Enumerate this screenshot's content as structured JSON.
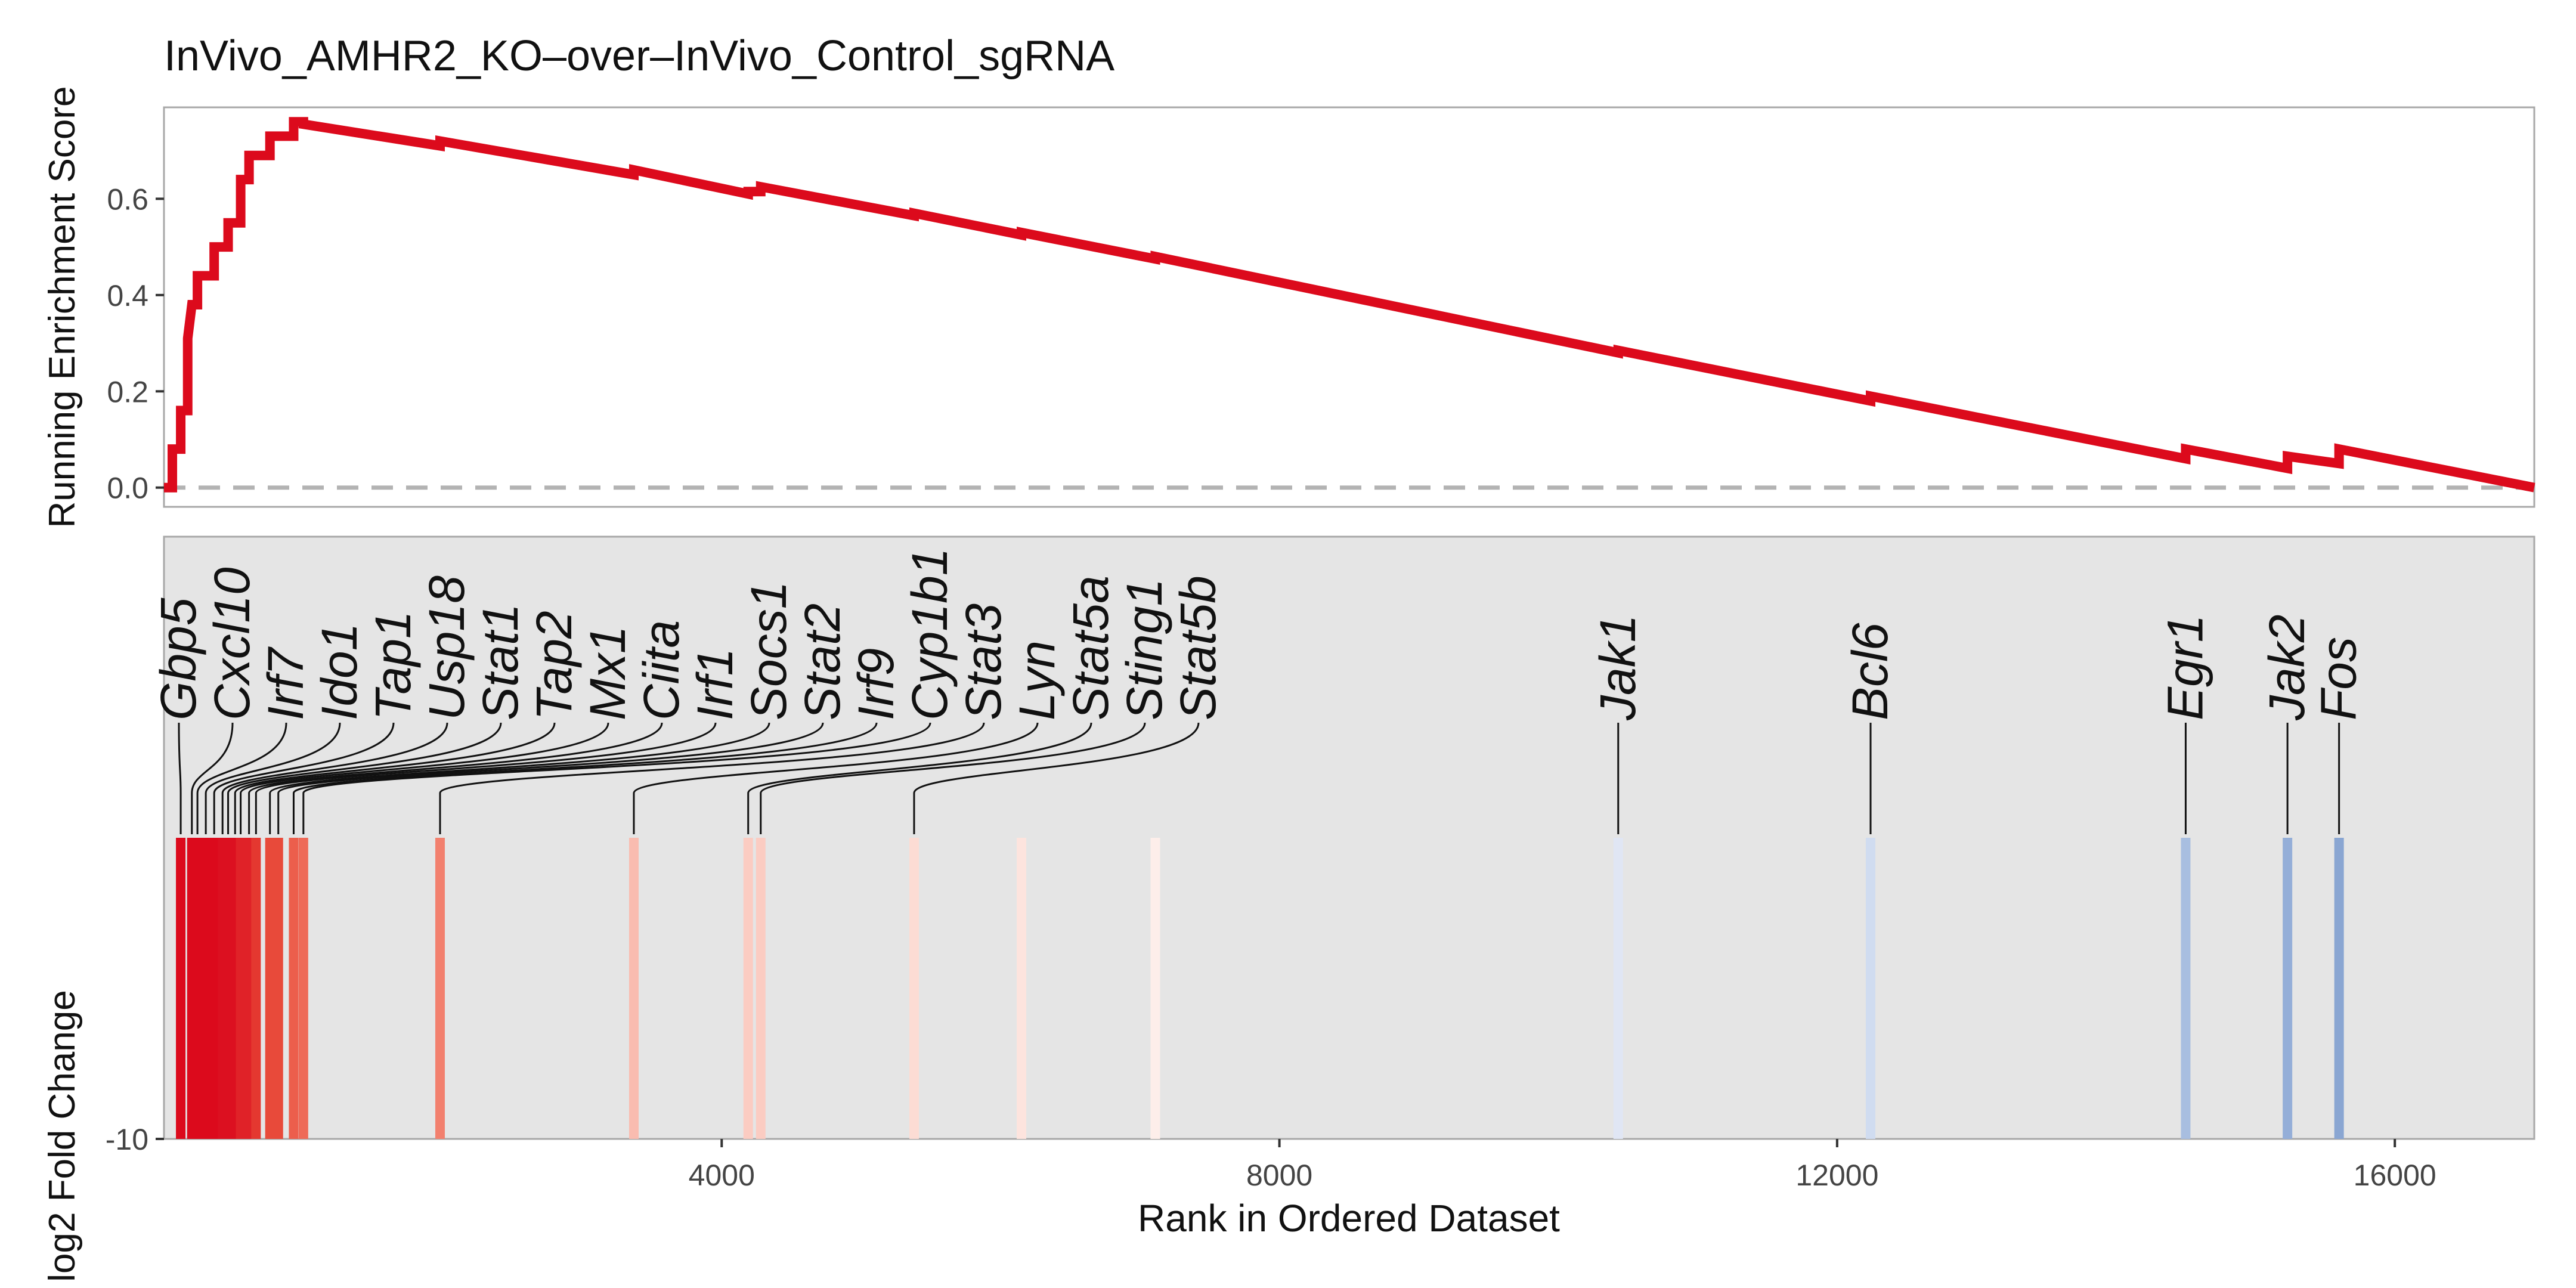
{
  "chart_data": [
    {
      "type": "line",
      "title": "InVivo_AMHR2_KO–over–InVivo_Control_sgRNA",
      "ylabel": "Running Enrichment Score",
      "xlim": [
        0,
        17000
      ],
      "ylim": [
        -0.04,
        0.79
      ],
      "yticks": [
        0.0,
        0.2,
        0.4,
        0.6
      ],
      "ytick_labels": [
        "0.0",
        "0.2",
        "0.4",
        "0.6"
      ],
      "grid": false,
      "reference_line": {
        "y": 0.0,
        "style": "dashed",
        "color": "#b0b0b0"
      },
      "series": [
        {
          "color": "#dc0a1c",
          "points": [
            [
              0,
              0
            ],
            [
              60,
              0
            ],
            [
              60,
              0.08
            ],
            [
              120,
              0.08
            ],
            [
              120,
              0.16
            ],
            [
              170,
              0.16
            ],
            [
              170,
              0.31
            ],
            [
              200,
              0.38
            ],
            [
              240,
              0.38
            ],
            [
              240,
              0.44
            ],
            [
              360,
              0.44
            ],
            [
              360,
              0.5
            ],
            [
              460,
              0.5
            ],
            [
              460,
              0.55
            ],
            [
              550,
              0.55
            ],
            [
              550,
              0.64
            ],
            [
              610,
              0.64
            ],
            [
              610,
              0.69
            ],
            [
              760,
              0.69
            ],
            [
              760,
              0.73
            ],
            [
              930,
              0.73
            ],
            [
              930,
              0.76
            ],
            [
              1000,
              0.76
            ],
            [
              1000,
              0.755
            ],
            [
              1980,
              0.71
            ],
            [
              1980,
              0.72
            ],
            [
              3370,
              0.65
            ],
            [
              3370,
              0.66
            ],
            [
              4190,
              0.61
            ],
            [
              4190,
              0.615
            ],
            [
              4280,
              0.615
            ],
            [
              4280,
              0.625
            ],
            [
              5380,
              0.565
            ],
            [
              5380,
              0.57
            ],
            [
              6150,
              0.525
            ],
            [
              6150,
              0.53
            ],
            [
              7110,
              0.475
            ],
            [
              7110,
              0.48
            ],
            [
              10430,
              0.28
            ],
            [
              10430,
              0.285
            ],
            [
              12240,
              0.18
            ],
            [
              12240,
              0.19
            ],
            [
              14500,
              0.06
            ],
            [
              14500,
              0.08
            ],
            [
              15230,
              0.04
            ],
            [
              15230,
              0.065
            ],
            [
              15600,
              0.05
            ],
            [
              15600,
              0.08
            ],
            [
              17000,
              0.0
            ]
          ]
        }
      ]
    },
    {
      "type": "heatmap",
      "ylabel": "log2 Fold Change",
      "xlabel": "Rank in Ordered Dataset",
      "xlim": [
        0,
        17000
      ],
      "xticks": [
        4000,
        8000,
        12000,
        16000
      ],
      "xtick_labels": [
        "4000",
        "8000",
        "12000",
        "16000"
      ],
      "ytick_labels": [
        "-10"
      ],
      "background": "#e5e5e5",
      "genes": [
        {
          "label": "Gbp5",
          "rank": 120,
          "color": "#dc0a1c"
        },
        {
          "label": "Cxcl10",
          "rank": 200,
          "color": "#dc0a1c"
        },
        {
          "label": "Irf7",
          "rank": 240,
          "color": "#dc0a1c"
        },
        {
          "label": "Ido1",
          "rank": 300,
          "color": "#dc0a1c"
        },
        {
          "label": "Tap1",
          "rank": 360,
          "color": "#dc0a1c"
        },
        {
          "label": "Usp18",
          "rank": 420,
          "color": "#dc1020"
        },
        {
          "label": "Stat1",
          "rank": 460,
          "color": "#dc1020"
        },
        {
          "label": "Tap2",
          "rank": 510,
          "color": "#dc1020"
        },
        {
          "label": "Mx1",
          "rank": 550,
          "color": "#e02228"
        },
        {
          "label": "Ciita",
          "rank": 610,
          "color": "#e02228"
        },
        {
          "label": "Irf1",
          "rank": 660,
          "color": "#e43830"
        },
        {
          "label": "Socs1",
          "rank": 760,
          "color": "#e84a3a"
        },
        {
          "label": "Stat2",
          "rank": 820,
          "color": "#e84a3a"
        },
        {
          "label": "Irf9",
          "rank": 930,
          "color": "#ec5e4c"
        },
        {
          "label": "Cyp1b1",
          "rank": 1000,
          "color": "#ee6a58"
        },
        {
          "label": "Stat3",
          "rank": 1980,
          "color": "#f2806e"
        },
        {
          "label": "Lyn",
          "rank": 3370,
          "color": "#f9bcb0"
        },
        {
          "label": "Stat5a",
          "rank": 4190,
          "color": "#fbccc2"
        },
        {
          "label": "Sting1",
          "rank": 4280,
          "color": "#fbccc2"
        },
        {
          "label": "Stat5b",
          "rank": 5380,
          "color": "#fcdcd4"
        },
        {
          "label": "Jak1",
          "rank": 10430,
          "color": "#e0e6f4"
        },
        {
          "label": "Bcl6",
          "rank": 12240,
          "color": "#d0dcf0"
        },
        {
          "label": "Egr1",
          "rank": 14500,
          "color": "#a8bee0"
        },
        {
          "label": "Jak2",
          "rank": 15230,
          "color": "#94aed8"
        },
        {
          "label": "Fos",
          "rank": 15600,
          "color": "#8aa6d2"
        }
      ],
      "extra_bars": [
        {
          "rank": 6150,
          "color": "#fde4de"
        },
        {
          "rank": 7110,
          "color": "#fdeeea"
        }
      ]
    }
  ]
}
